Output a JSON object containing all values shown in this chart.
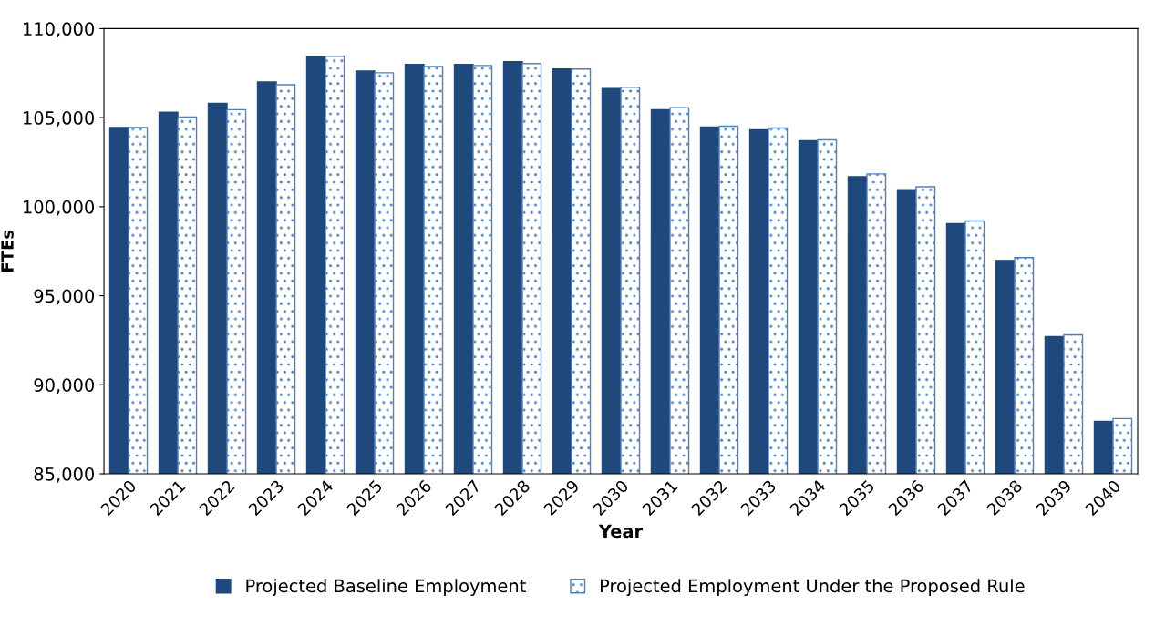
{
  "chart_data": {
    "type": "bar",
    "xlabel": "Year",
    "ylabel": "FTEs",
    "categories": [
      "2020",
      "2021",
      "2022",
      "2023",
      "2024",
      "2025",
      "2026",
      "2027",
      "2028",
      "2029",
      "2030",
      "2031",
      "2032",
      "2033",
      "2034",
      "2035",
      "2036",
      "2037",
      "2038",
      "2039",
      "2040"
    ],
    "series": [
      {
        "name": "Projected Baseline Employment",
        "color": "#1f497d",
        "values": [
          104450,
          105300,
          105800,
          107000,
          108450,
          107620,
          107990,
          107990,
          108140,
          107730,
          106640,
          105450,
          104470,
          104320,
          103700,
          101680,
          100960,
          99050,
          96980,
          92700,
          87950
        ]
      },
      {
        "name": "Projected Employment Under the Proposed Rule",
        "color": "#4f81bd",
        "values": [
          104450,
          105040,
          105450,
          106850,
          108450,
          107520,
          107880,
          107930,
          108040,
          107730,
          106700,
          105560,
          104520,
          104420,
          103750,
          101840,
          101120,
          99200,
          97140,
          92800,
          88100
        ]
      }
    ],
    "ylim": [
      85000,
      110000
    ],
    "yticks": [
      {
        "value": 85000,
        "label": "85,000"
      },
      {
        "value": 90000,
        "label": "90,000"
      },
      {
        "value": 95000,
        "label": "95,000"
      },
      {
        "value": 100000,
        "label": "100,000"
      },
      {
        "value": 105000,
        "label": "105,000"
      },
      {
        "value": 110000,
        "label": "110,000"
      }
    ],
    "grid": false,
    "legend": "bottom"
  }
}
